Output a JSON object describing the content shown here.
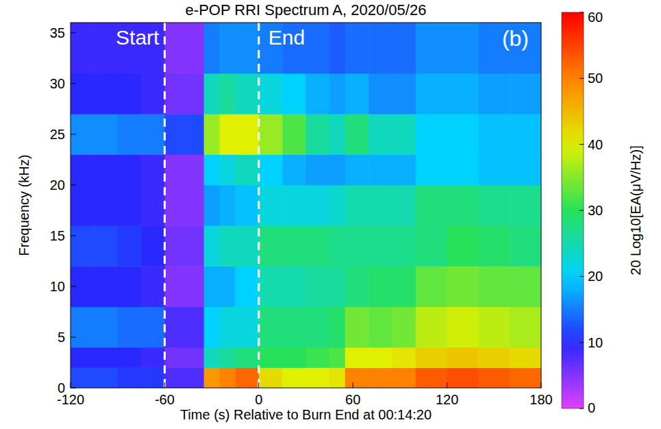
{
  "chart_data": {
    "type": "heatmap",
    "title": "e-POP RRI Spectrum A, 2020/05/26",
    "x_label": "Time (s) Relative to Burn End at 00:14:20",
    "y_label": "Frequency (kHz)",
    "panel_label": "(b)",
    "xlim": [
      -120,
      180
    ],
    "xticks": [
      -120,
      -60,
      0,
      60,
      120,
      180
    ],
    "ylim": [
      0,
      36
    ],
    "yticks": [
      0,
      5,
      10,
      15,
      20,
      25,
      30,
      35
    ],
    "x_bins": [
      -120,
      -105,
      -90,
      -75,
      -60,
      -45,
      -35,
      -25,
      -15,
      0,
      15,
      30,
      45,
      55,
      70,
      85,
      100,
      120,
      140,
      160,
      180
    ],
    "y_bins": [
      0,
      2,
      4,
      8,
      12,
      16,
      20,
      23,
      27,
      31,
      36
    ],
    "values": [
      [
        12,
        12,
        11,
        11,
        8,
        8,
        48,
        50,
        52,
        42,
        40,
        40,
        41,
        50,
        50,
        50,
        53,
        54,
        53,
        52
      ],
      [
        10,
        10,
        10,
        9,
        6,
        6,
        24,
        26,
        28,
        30,
        30,
        31,
        32,
        40,
        40,
        41,
        43,
        44,
        43,
        42
      ],
      [
        15,
        15,
        14,
        14,
        8,
        8,
        20,
        22,
        22,
        28,
        28,
        28,
        29,
        34,
        33,
        34,
        38,
        39,
        38,
        37
      ],
      [
        10,
        10,
        10,
        9,
        5,
        5,
        18,
        18,
        20,
        25,
        25,
        26,
        26,
        28,
        29,
        29,
        33,
        34,
        33,
        33
      ],
      [
        12,
        12,
        11,
        10,
        6,
        6,
        22,
        24,
        24,
        28,
        28,
        28,
        27,
        27,
        27,
        27,
        28,
        30,
        29,
        28
      ],
      [
        10,
        10,
        10,
        9,
        5,
        5,
        17,
        18,
        19,
        22,
        22,
        22,
        23,
        25,
        25,
        25,
        28,
        28,
        27,
        27
      ],
      [
        10,
        10,
        10,
        9,
        5,
        5,
        20,
        22,
        24,
        20,
        18,
        17,
        17,
        18,
        18,
        18,
        20,
        20,
        19,
        19
      ],
      [
        16,
        16,
        15,
        15,
        12,
        12,
        36,
        40,
        40,
        36,
        32,
        26,
        24,
        28,
        24,
        24,
        20,
        20,
        19,
        19
      ],
      [
        10,
        10,
        10,
        9,
        6,
        6,
        24,
        26,
        24,
        22,
        20,
        18,
        17,
        18,
        16,
        16,
        18,
        18,
        17,
        17
      ],
      [
        9,
        9,
        9,
        9,
        5,
        5,
        15,
        16,
        16,
        15,
        14,
        14,
        13,
        14,
        14,
        14,
        16,
        16,
        15,
        15
      ]
    ],
    "annotations": [
      {
        "text": "Start",
        "x": -60
      },
      {
        "text": "End",
        "x": 0
      }
    ],
    "colorbar": {
      "label": "20 Log10[EA(μV/Hz)]",
      "lim": [
        0,
        60
      ],
      "ticks": [
        0,
        10,
        20,
        30,
        40,
        50,
        60
      ]
    }
  }
}
